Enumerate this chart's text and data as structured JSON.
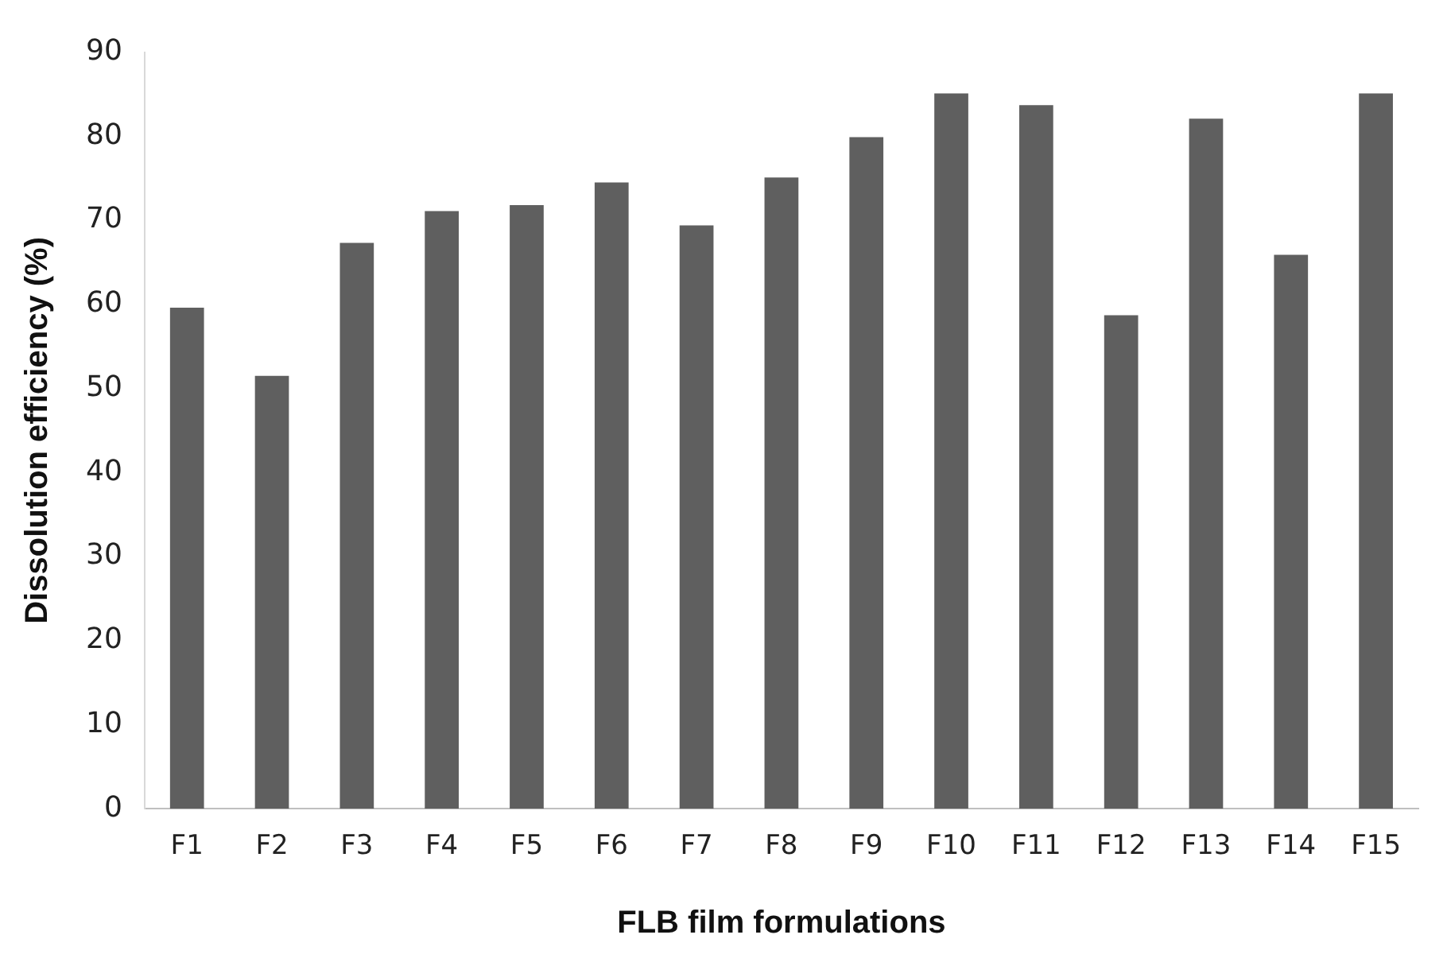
{
  "chart_data": {
    "type": "bar",
    "xlabel": "FLB film formulations",
    "ylabel": "Dissolution efficiency (%)",
    "categories": [
      "F1",
      "F2",
      "F3",
      "F4",
      "F5",
      "F6",
      "F7",
      "F8",
      "F9",
      "F10",
      "F11",
      "F12",
      "F13",
      "F14",
      "F15"
    ],
    "values": [
      59.6,
      51.5,
      67.3,
      71.1,
      71.8,
      74.5,
      69.4,
      75.1,
      79.9,
      85.1,
      83.7,
      58.7,
      82.1,
      65.9,
      85.1
    ],
    "color": "#5f5f5f",
    "ylim": [
      0,
      90
    ],
    "yticks": [
      0,
      10,
      20,
      30,
      40,
      50,
      60,
      70,
      80,
      90
    ],
    "grid": false,
    "legend": false
  }
}
